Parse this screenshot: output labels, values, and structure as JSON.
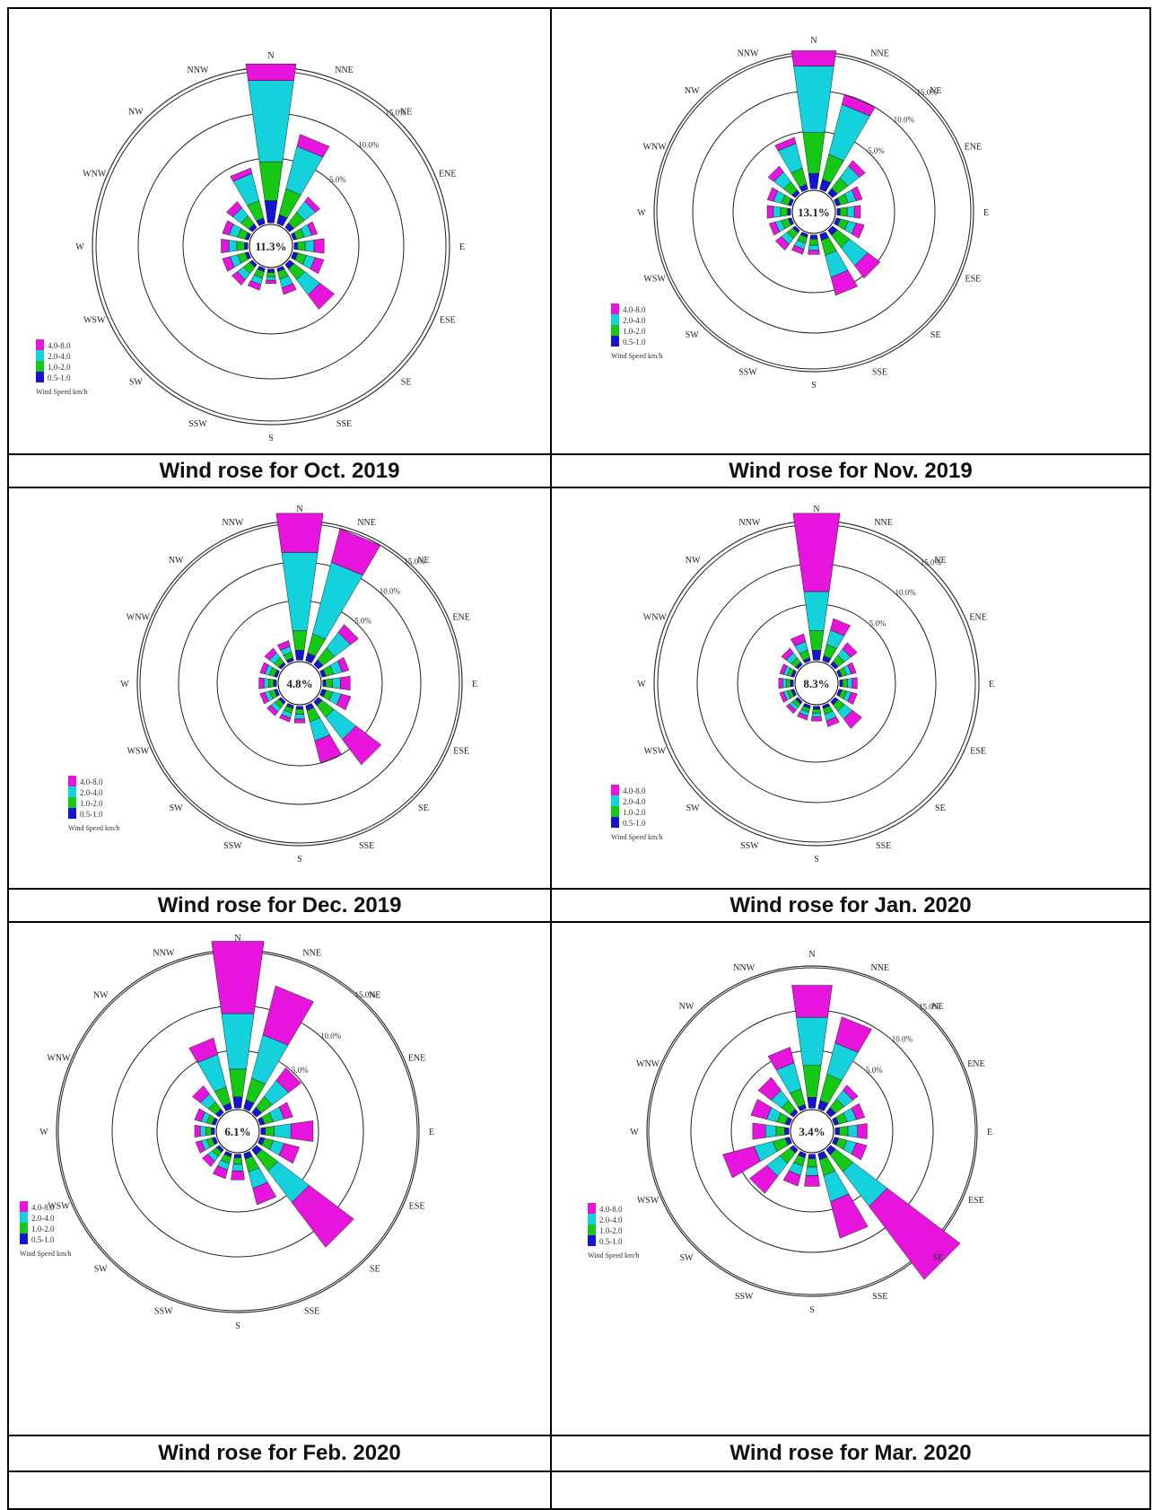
{
  "chart_data": [
    {
      "type": "wind-rose",
      "title": "Wind rose for Oct. 2019",
      "calm_percent_label": "11.3%",
      "ring_labels": [
        "5.0%",
        "10.0%",
        "15.0%"
      ],
      "directions": [
        "N",
        "NNE",
        "NE",
        "ENE",
        "E",
        "ESE",
        "SE",
        "SSE",
        "S",
        "SSW",
        "SW",
        "WSW",
        "W",
        "WNW",
        "NW",
        "NNW"
      ],
      "legend_title": "Wind Speed km/h",
      "speed_bins": [
        "0.5-1.0",
        "1.0-2.0",
        "2.0-4.0",
        "4.0-8.0"
      ],
      "bin_colors": [
        "#1414d2",
        "#14c814",
        "#14d2dc",
        "#e614dc"
      ],
      "frequencies_percent": [
        [
          2.0,
          3.5,
          7.3,
          1.5
        ],
        [
          0.8,
          2.4,
          3.9,
          1.1
        ],
        [
          0.5,
          1.2,
          1.2,
          0.5
        ],
        [
          0.3,
          0.7,
          0.7,
          0.5
        ],
        [
          0.3,
          0.7,
          0.8,
          0.9
        ],
        [
          0.4,
          0.8,
          0.8,
          0.8
        ],
        [
          0.5,
          1.2,
          1.7,
          1.6
        ],
        [
          0.3,
          0.7,
          0.8,
          0.6
        ],
        [
          0.3,
          0.4,
          0.3,
          0.3
        ],
        [
          0.3,
          0.6,
          0.6,
          0.5
        ],
        [
          0.3,
          0.7,
          0.7,
          0.6
        ],
        [
          0.3,
          0.7,
          0.7,
          0.7
        ],
        [
          0.3,
          0.7,
          0.7,
          0.7
        ],
        [
          0.3,
          0.7,
          0.8,
          0.6
        ],
        [
          0.4,
          0.9,
          0.9,
          0.7
        ],
        [
          0.5,
          1.6,
          2.5,
          0.5
        ]
      ]
    },
    {
      "type": "wind-rose",
      "title": "Wind rose for Nov. 2019",
      "calm_percent_label": "13.1%",
      "ring_labels": [
        "5.0%",
        "10.0%",
        "15.0%"
      ],
      "directions": [
        "N",
        "NNE",
        "NE",
        "ENE",
        "E",
        "ESE",
        "SE",
        "SSE",
        "S",
        "SSW",
        "SW",
        "WSW",
        "W",
        "WNW",
        "NW",
        "NNW"
      ],
      "legend_title": "Wind Speed km/h",
      "speed_bins": [
        "0.5-1.0",
        "1.0-2.0",
        "2.0-4.0",
        "4.0-8.0"
      ],
      "bin_colors": [
        "#1414d2",
        "#14c814",
        "#14d2dc",
        "#e614dc"
      ],
      "frequencies_percent": [
        [
          1.5,
          4.0,
          6.5,
          1.5
        ],
        [
          1.0,
          2.5,
          5.0,
          1.0
        ],
        [
          0.6,
          1.3,
          1.4,
          0.7
        ],
        [
          0.4,
          0.8,
          0.8,
          0.6
        ],
        [
          0.3,
          0.7,
          0.7,
          0.6
        ],
        [
          0.4,
          0.8,
          0.8,
          0.8
        ],
        [
          0.6,
          1.5,
          2.2,
          1.5
        ],
        [
          0.6,
          1.5,
          2.2,
          1.8
        ],
        [
          0.4,
          0.6,
          0.5,
          0.4
        ],
        [
          0.3,
          0.6,
          0.6,
          0.5
        ],
        [
          0.3,
          0.7,
          0.7,
          0.7
        ],
        [
          0.3,
          0.7,
          0.6,
          0.6
        ],
        [
          0.3,
          0.7,
          0.7,
          0.6
        ],
        [
          0.3,
          0.7,
          0.8,
          0.6
        ],
        [
          0.4,
          1.0,
          1.2,
          0.7
        ],
        [
          0.5,
          1.6,
          2.5,
          0.6
        ]
      ]
    },
    {
      "type": "wind-rose",
      "title": "Wind rose for Dec. 2019",
      "calm_percent_label": "4.8%",
      "ring_labels": [
        "5.0%",
        "10.0%",
        "15.0%"
      ],
      "directions": [
        "N",
        "NNE",
        "NE",
        "ENE",
        "E",
        "ESE",
        "SE",
        "SSE",
        "S",
        "SSW",
        "SW",
        "WSW",
        "W",
        "WNW",
        "NW",
        "NNW"
      ],
      "legend_title": "Wind Speed km/h",
      "speed_bins": [
        "0.5-1.0",
        "1.0-2.0",
        "2.0-4.0",
        "4.0-8.0"
      ],
      "bin_colors": [
        "#1414d2",
        "#14c814",
        "#14d2dc",
        "#e614dc"
      ],
      "frequencies_percent": [
        [
          1.0,
          2.0,
          8.0,
          4.0
        ],
        [
          0.8,
          2.0,
          7.5,
          3.5
        ],
        [
          0.6,
          1.5,
          2.0,
          1.0
        ],
        [
          0.4,
          0.8,
          0.9,
          0.7
        ],
        [
          0.3,
          0.7,
          0.8,
          1.0
        ],
        [
          0.4,
          0.7,
          0.9,
          1.0
        ],
        [
          0.5,
          1.5,
          2.8,
          3.2
        ],
        [
          0.5,
          1.2,
          2.0,
          2.3
        ],
        [
          0.3,
          0.5,
          0.5,
          0.4
        ],
        [
          0.3,
          0.5,
          0.5,
          0.4
        ],
        [
          0.3,
          0.5,
          0.5,
          0.5
        ],
        [
          0.3,
          0.5,
          0.5,
          0.5
        ],
        [
          0.3,
          0.5,
          0.5,
          0.5
        ],
        [
          0.3,
          0.5,
          0.5,
          0.5
        ],
        [
          0.3,
          0.6,
          0.6,
          0.6
        ],
        [
          0.3,
          0.6,
          0.6,
          0.6
        ]
      ]
    },
    {
      "type": "wind-rose",
      "title": "Wind rose for Jan. 2020",
      "calm_percent_label": "8.3%",
      "ring_labels": [
        "5.0%",
        "10.0%",
        "15.0%"
      ],
      "directions": [
        "N",
        "NNE",
        "NE",
        "ENE",
        "E",
        "ESE",
        "SE",
        "SSE",
        "S",
        "SSW",
        "SW",
        "WSW",
        "W",
        "WNW",
        "NW",
        "NNW"
      ],
      "legend_title": "Wind Speed km/h",
      "speed_bins": [
        "0.5-1.0",
        "1.0-2.0",
        "2.0-4.0",
        "4.0-8.0"
      ],
      "bin_colors": [
        "#1414d2",
        "#14c814",
        "#14d2dc",
        "#e614dc"
      ],
      "frequencies_percent": [
        [
          1.0,
          2.0,
          4.0,
          8.0
        ],
        [
          0.5,
          1.2,
          1.5,
          1.2
        ],
        [
          0.4,
          0.8,
          0.8,
          0.8
        ],
        [
          0.3,
          0.5,
          0.5,
          0.5
        ],
        [
          0.3,
          0.5,
          0.5,
          0.5
        ],
        [
          0.3,
          0.5,
          0.5,
          0.6
        ],
        [
          0.4,
          0.8,
          1.0,
          1.2
        ],
        [
          0.3,
          0.6,
          0.7,
          0.6
        ],
        [
          0.3,
          0.4,
          0.4,
          0.4
        ],
        [
          0.3,
          0.4,
          0.4,
          0.4
        ],
        [
          0.3,
          0.4,
          0.4,
          0.4
        ],
        [
          0.3,
          0.4,
          0.4,
          0.4
        ],
        [
          0.3,
          0.4,
          0.4,
          0.4
        ],
        [
          0.3,
          0.4,
          0.4,
          0.4
        ],
        [
          0.3,
          0.6,
          0.6,
          0.6
        ],
        [
          0.3,
          0.8,
          0.9,
          0.8
        ]
      ]
    },
    {
      "type": "wind-rose",
      "title": "Wind rose for Feb. 2020",
      "calm_percent_label": "6.1%",
      "ring_labels": [
        "5.0%",
        "10.0%",
        "15.0%"
      ],
      "directions": [
        "N",
        "NNE",
        "NE",
        "ENE",
        "E",
        "ESE",
        "SE",
        "SSE",
        "S",
        "SSW",
        "SW",
        "WSW",
        "W",
        "WNW",
        "NW",
        "NNW"
      ],
      "legend_title": "Wind Speed km/h",
      "speed_bins": [
        "0.5-1.0",
        "1.0-2.0",
        "2.0-4.0",
        "4.0-8.0"
      ],
      "bin_colors": [
        "#1414d2",
        "#14c814",
        "#14d2dc",
        "#e614dc"
      ],
      "frequencies_percent": [
        [
          1.0,
          2.5,
          5.0,
          6.5
        ],
        [
          0.8,
          2.0,
          4.0,
          4.5
        ],
        [
          0.6,
          1.2,
          1.8,
          1.4
        ],
        [
          0.4,
          0.8,
          1.0,
          0.8
        ],
        [
          0.4,
          0.8,
          1.5,
          2.0
        ],
        [
          0.4,
          0.8,
          1.0,
          1.4
        ],
        [
          0.6,
          1.8,
          3.5,
          5.0
        ],
        [
          0.5,
          1.2,
          1.5,
          1.5
        ],
        [
          0.3,
          0.6,
          0.6,
          0.8
        ],
        [
          0.3,
          0.6,
          0.6,
          0.8
        ],
        [
          0.3,
          0.5,
          0.5,
          0.6
        ],
        [
          0.3,
          0.5,
          0.5,
          0.5
        ],
        [
          0.3,
          0.5,
          0.5,
          0.5
        ],
        [
          0.3,
          0.5,
          0.5,
          0.6
        ],
        [
          0.4,
          0.8,
          0.9,
          0.9
        ],
        [
          0.5,
          1.5,
          3.0,
          1.5
        ]
      ]
    },
    {
      "type": "wind-rose",
      "title": "Wind rose for Mar. 2020",
      "calm_percent_label": "3.4%",
      "ring_labels": [
        "5.0%",
        "10.0%",
        "15.0%"
      ],
      "directions": [
        "N",
        "NNE",
        "NE",
        "ENE",
        "E",
        "ESE",
        "SE",
        "SSE",
        "S",
        "SSW",
        "SW",
        "WSW",
        "W",
        "WNW",
        "NW",
        "NNW"
      ],
      "legend_title": "Wind Speed km/h",
      "speed_bins": [
        "0.5-1.0",
        "1.0-2.0",
        "2.0-4.0",
        "4.0-8.0"
      ],
      "bin_colors": [
        "#1414d2",
        "#14c814",
        "#14d2dc",
        "#e614dc"
      ],
      "frequencies_percent": [
        [
          1.0,
          3.0,
          4.5,
          3.0
        ],
        [
          0.8,
          2.5,
          3.0,
          2.5
        ],
        [
          0.6,
          1.0,
          1.0,
          0.6
        ],
        [
          0.4,
          0.8,
          0.9,
          0.8
        ],
        [
          0.4,
          0.8,
          0.9,
          0.9
        ],
        [
          0.4,
          0.8,
          0.9,
          1.0
        ],
        [
          0.6,
          2.0,
          4.0,
          8.5
        ],
        [
          0.6,
          1.5,
          2.5,
          3.5
        ],
        [
          0.4,
          0.8,
          0.8,
          1.0
        ],
        [
          0.4,
          0.8,
          0.9,
          1.0
        ],
        [
          0.4,
          1.2,
          1.5,
          2.0
        ],
        [
          0.4,
          1.2,
          1.8,
          3.0
        ],
        [
          0.4,
          0.8,
          1.0,
          1.2
        ],
        [
          0.4,
          0.8,
          1.0,
          1.5
        ],
        [
          0.4,
          1.0,
          1.2,
          1.5
        ],
        [
          0.4,
          1.5,
          2.5,
          1.5
        ]
      ]
    }
  ]
}
